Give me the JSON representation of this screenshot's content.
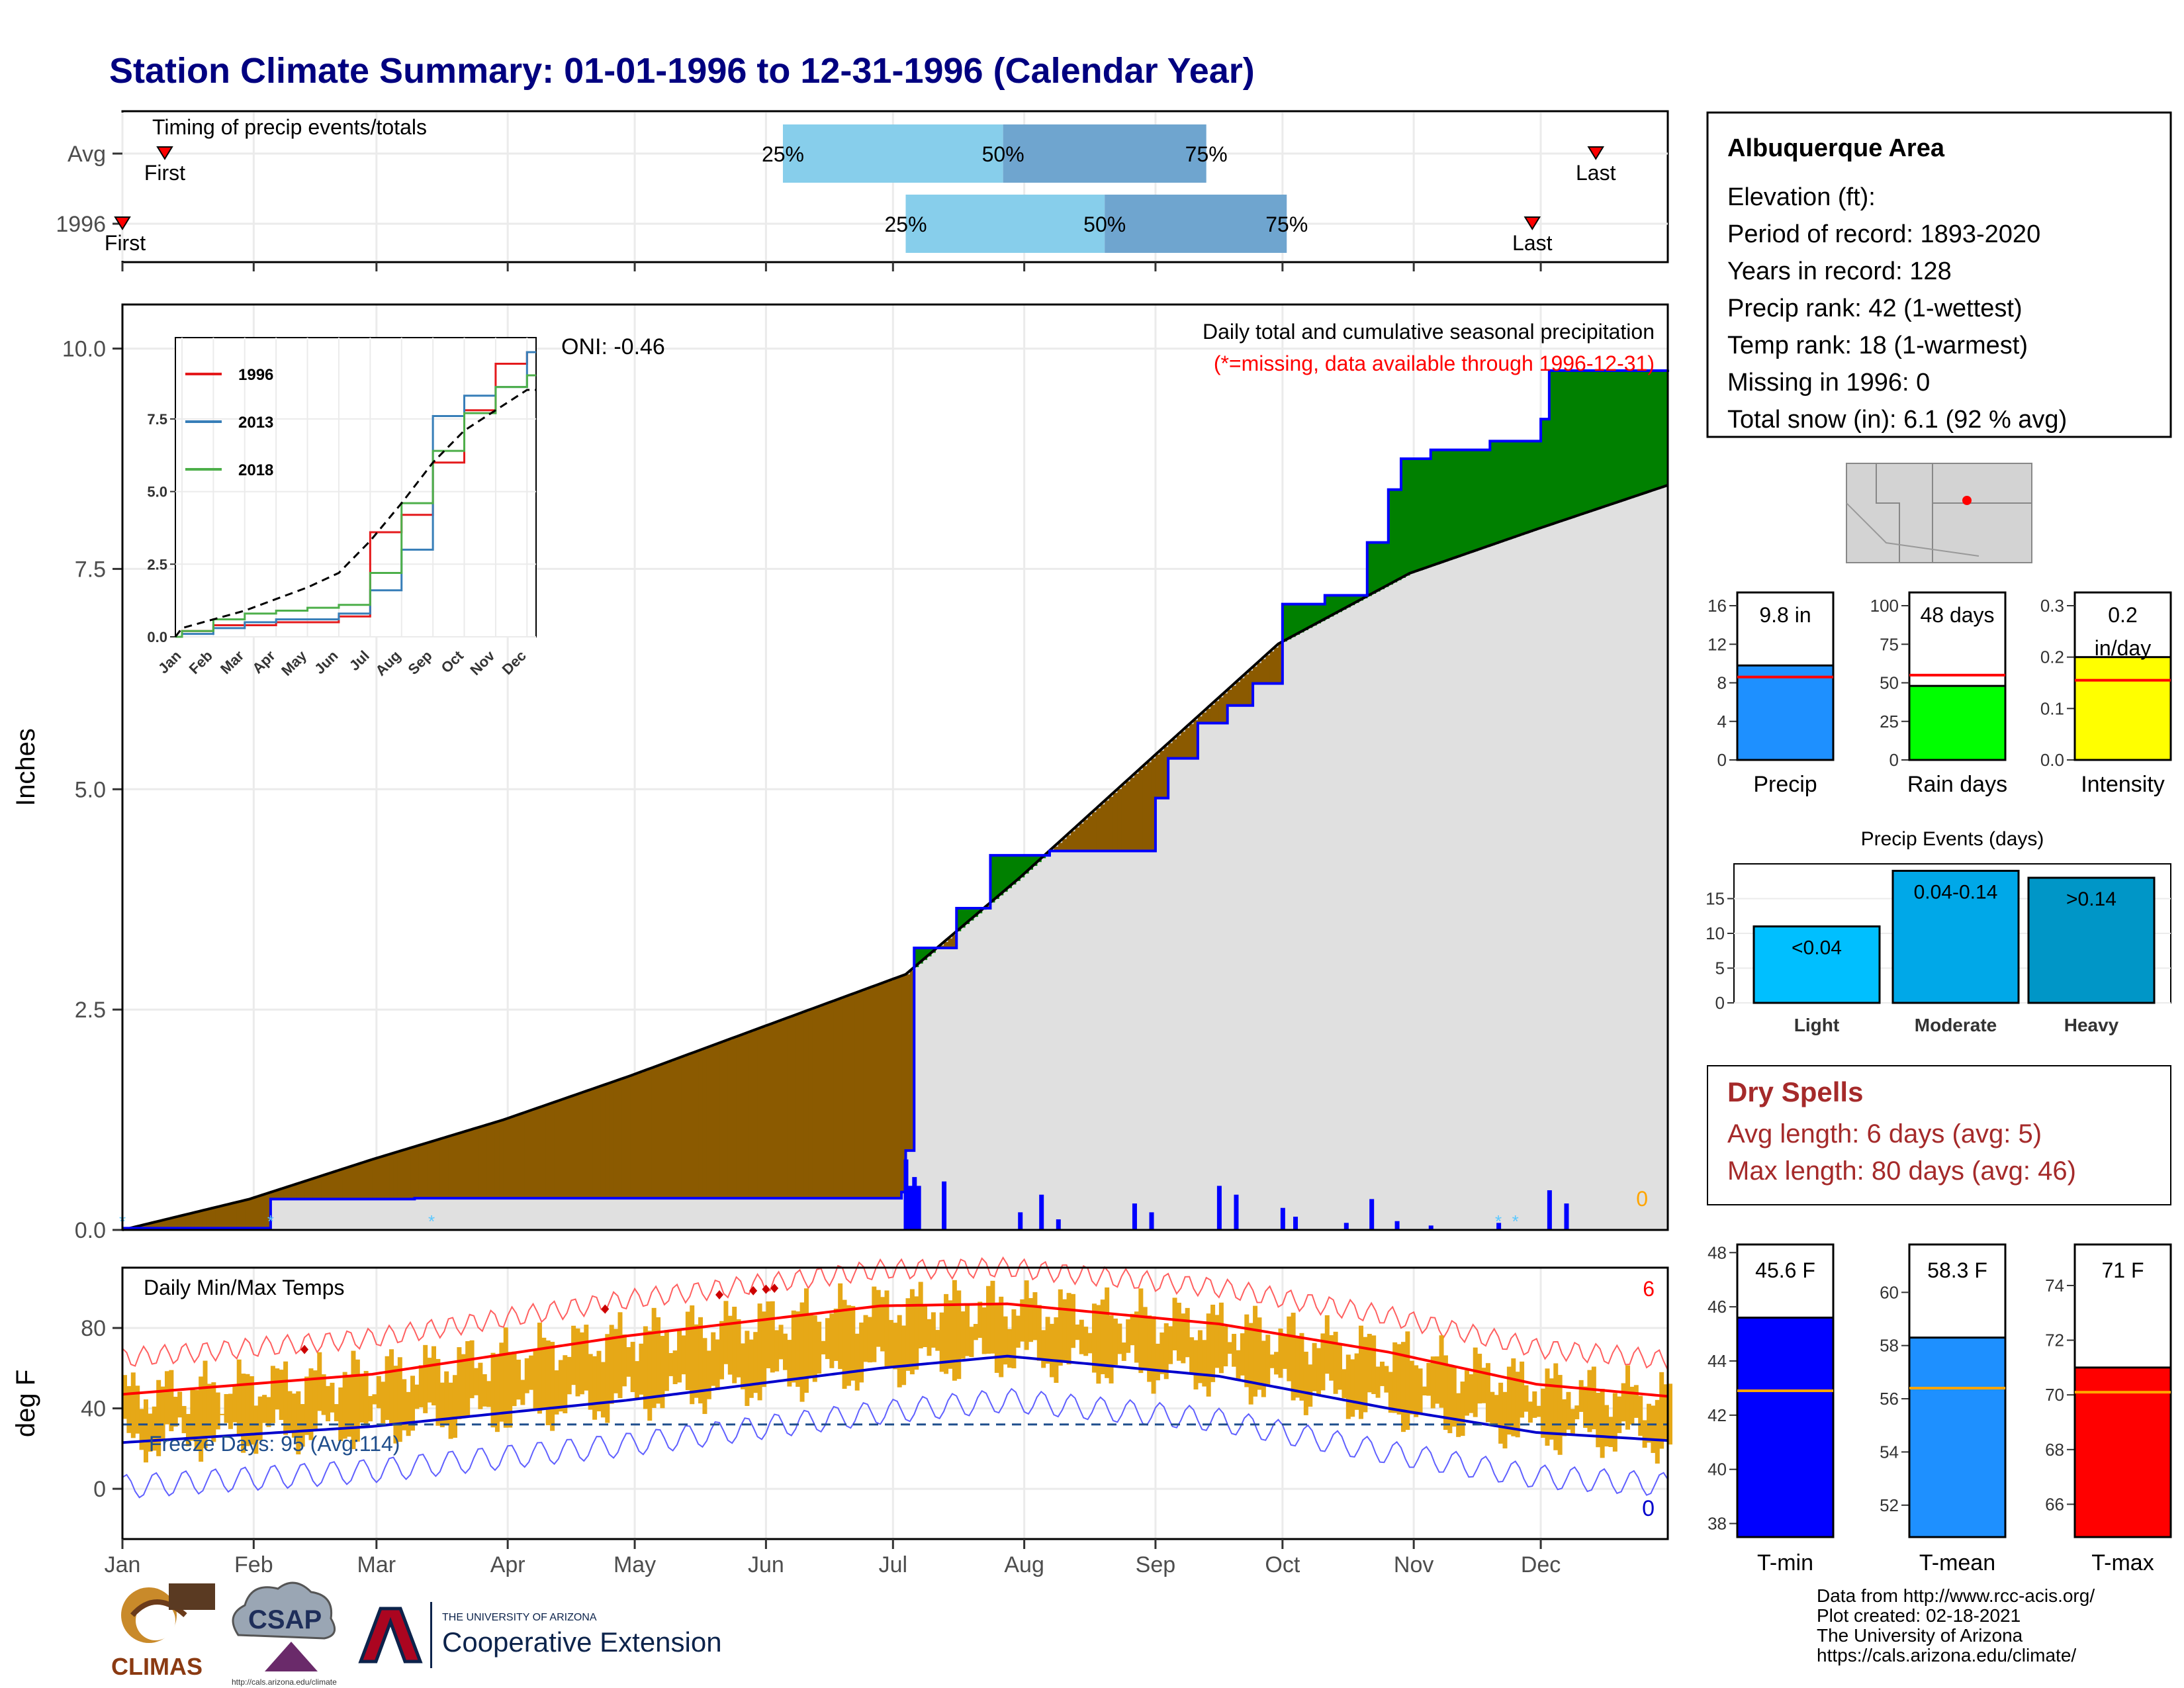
{
  "title": "Station Climate Summary: 01-01-1996 to 12-31-1996 (Calendar Year)",
  "colors": {
    "title": "#000080",
    "precip_blue": "#0000ff",
    "surplus_green": "#008000",
    "deficit_brown": "#8b5a00",
    "normal_gray": "#e0e0e0",
    "temp_gold": "#e6a817",
    "red": "#ff0000",
    "dry_spell": "#a52a2a"
  },
  "months": [
    "Jan",
    "Feb",
    "Mar",
    "Apr",
    "May",
    "Jun",
    "Jul",
    "Aug",
    "Sep",
    "Oct",
    "Nov",
    "Dec"
  ],
  "timing": {
    "label": "Timing of precip events/totals",
    "rows": [
      {
        "name": "Avg",
        "first_label": "First",
        "last_label": "Last",
        "first_day": 11,
        "p25_day": 157,
        "p50_day": 209,
        "p75_day": 257,
        "last_day": 349
      },
      {
        "name": "1996",
        "first_label": "First",
        "last_label": "Last",
        "first_day": 1,
        "p25_day": 186,
        "p50_day": 233,
        "p75_day": 276,
        "last_day": 334
      }
    ],
    "pct_labels": [
      "25%",
      "50%",
      "75%"
    ]
  },
  "station": {
    "name": "Albuquerque Area",
    "lines": [
      "Elevation (ft):",
      "Period of record: 1893-2020",
      "Years in record: 128",
      "Precip rank: 42 (1-wettest)",
      "Temp rank: 18 (1-warmest)",
      "Missing in 1996: 0",
      "Total snow (in): 6.1 (92 % avg)"
    ]
  },
  "precip_panel": {
    "title": "Daily total and cumulative seasonal precipitation",
    "subtitle": "(*=missing, data available through 1996-12-31)",
    "oni": "ONI: -0.46",
    "ylabel": "Inches",
    "yticks": [
      "0.0",
      "2.5",
      "5.0",
      "7.5",
      "10.0"
    ],
    "missing_count": "0"
  },
  "inset": {
    "legend": [
      "1996",
      "2013",
      "2018"
    ],
    "legend_colors": [
      "#e41a1c",
      "#377eb8",
      "#4daf4a"
    ],
    "yticks": [
      "0.0",
      "2.5",
      "5.0",
      "7.5"
    ]
  },
  "temp_panel": {
    "title": "Daily Min/Max Temps",
    "ylabel": "deg F",
    "yticks": [
      "0",
      "40",
      "80"
    ],
    "freeze": "Freeze Days: 95 (Avg:114)",
    "record_high_count": "6",
    "record_low_count": "0"
  },
  "summary_bars": [
    {
      "label": "Precip",
      "value_label": "9.8 in",
      "ticks": [
        "0",
        "4",
        "8",
        "12",
        "16"
      ],
      "color": "#1e90ff"
    },
    {
      "label": "Rain days",
      "value_label": "48 days",
      "ticks": [
        "0",
        "25",
        "50",
        "75",
        "100"
      ],
      "color": "#00ff00"
    },
    {
      "label": "Intensity",
      "value_label": "0.2\nin/day",
      "ticks": [
        "0.0",
        "0.1",
        "0.2",
        "0.3"
      ],
      "color": "#ffff00"
    }
  ],
  "events": {
    "title": "Precip Events (days)",
    "yticks": [
      "0",
      "5",
      "10",
      "15"
    ],
    "bars": [
      {
        "label": "Light",
        "value_label": "<0.04",
        "color": "#00bfff"
      },
      {
        "label": "Moderate",
        "value_label": "0.04-0.14",
        "color": "#00a8e8"
      },
      {
        "label": "Heavy",
        "value_label": ">0.14",
        "color": "#0096c7"
      }
    ]
  },
  "dry_spells": {
    "title": "Dry Spells",
    "lines": [
      "Avg length: 6 days (avg: 5)",
      "Max length: 80 days (avg: 46)"
    ]
  },
  "temp_bars": [
    {
      "label": "T-min",
      "value_label": "45.6 F",
      "ticks": [
        "38",
        "40",
        "42",
        "44",
        "46",
        "48"
      ],
      "color": "#0000ff"
    },
    {
      "label": "T-mean",
      "value_label": "58.3 F",
      "ticks": [
        "52",
        "54",
        "56",
        "58",
        "60"
      ],
      "color": "#1e90ff"
    },
    {
      "label": "T-max",
      "value_label": "71 F",
      "ticks": [
        "66",
        "68",
        "70",
        "72",
        "74"
      ],
      "color": "#ff0000"
    }
  ],
  "credits": [
    "Data from http://www.rcc-acis.org/",
    "Plot created: 02-18-2021",
    "The University of Arizona",
    "https://cals.arizona.edu/climate/"
  ],
  "logos": {
    "climas": "CLIMAS",
    "csap": "CSAP",
    "csap_url": "http://cals.arizona.edu/climate",
    "ua_top": "THE UNIVERSITY OF ARIZONA",
    "ua_bottom": "Cooperative Extension"
  },
  "chart_data": [
    {
      "type": "area",
      "title": "Daily total and cumulative seasonal precipitation",
      "ylabel": "Inches",
      "ylim": [
        0,
        10.5
      ],
      "x_unit": "day of year 1996",
      "cumulative_1996_steps": [
        [
          1,
          0.02
        ],
        [
          36,
          0.35
        ],
        [
          70,
          0.36
        ],
        [
          185,
          0.43
        ],
        [
          186,
          0.9
        ],
        [
          188,
          3.2
        ],
        [
          198,
          3.65
        ],
        [
          206,
          4.25
        ],
        [
          220,
          4.3
        ],
        [
          245,
          4.9
        ],
        [
          248,
          5.35
        ],
        [
          255,
          5.75
        ],
        [
          262,
          5.95
        ],
        [
          268,
          6.2
        ],
        [
          275,
          7.1
        ],
        [
          285,
          7.2
        ],
        [
          295,
          7.8
        ],
        [
          300,
          8.4
        ],
        [
          303,
          8.75
        ],
        [
          310,
          8.85
        ],
        [
          324,
          8.95
        ],
        [
          336,
          9.2
        ],
        [
          338,
          9.75
        ],
        [
          366,
          9.76
        ]
      ],
      "normal_cumulative": [
        [
          1,
          0.0
        ],
        [
          31,
          0.35
        ],
        [
          60,
          0.8
        ],
        [
          91,
          1.25
        ],
        [
          121,
          1.75
        ],
        [
          152,
          2.3
        ],
        [
          186,
          2.9
        ],
        [
          213,
          4.0
        ],
        [
          244,
          5.35
        ],
        [
          274,
          6.65
        ],
        [
          305,
          7.45
        ],
        [
          335,
          7.95
        ],
        [
          366,
          8.45
        ]
      ],
      "daily_precip": [
        [
          186,
          0.8
        ],
        [
          187,
          0.5
        ],
        [
          188,
          0.6
        ],
        [
          189,
          0.5
        ],
        [
          195,
          0.55
        ],
        [
          213,
          0.2
        ],
        [
          218,
          0.4
        ],
        [
          222,
          0.12
        ],
        [
          240,
          0.3
        ],
        [
          244,
          0.2
        ],
        [
          260,
          0.5
        ],
        [
          264,
          0.4
        ],
        [
          275,
          0.25
        ],
        [
          278,
          0.15
        ],
        [
          290,
          0.08
        ],
        [
          296,
          0.35
        ],
        [
          302,
          0.1
        ],
        [
          310,
          0.05
        ],
        [
          326,
          0.08
        ],
        [
          338,
          0.45
        ],
        [
          342,
          0.3
        ]
      ]
    },
    {
      "type": "line",
      "title": "Daily Min/Max Temps",
      "ylabel": "deg F",
      "ylim": [
        -25,
        110
      ],
      "normal_max": [
        [
          1,
          47
        ],
        [
          60,
          57
        ],
        [
          120,
          76
        ],
        [
          180,
          91
        ],
        [
          210,
          92
        ],
        [
          260,
          82
        ],
        [
          300,
          68
        ],
        [
          335,
          52
        ],
        [
          366,
          46
        ]
      ],
      "normal_min": [
        [
          1,
          23
        ],
        [
          60,
          31
        ],
        [
          120,
          44
        ],
        [
          180,
          60
        ],
        [
          210,
          66
        ],
        [
          260,
          56
        ],
        [
          300,
          40
        ],
        [
          335,
          28
        ],
        [
          366,
          24
        ]
      ],
      "freeze_line": 32
    },
    {
      "type": "line",
      "title": "",
      "months": [
        "Jan",
        "Feb",
        "Mar",
        "Apr",
        "May",
        "Jun",
        "Jul",
        "Aug",
        "Sep",
        "Oct",
        "Nov",
        "Dec"
      ],
      "series": [
        {
          "name": "1996",
          "values": [
            0.2,
            0.4,
            0.4,
            0.5,
            0.5,
            0.7,
            3.6,
            4.2,
            6.0,
            7.8,
            9.4,
            9.8
          ]
        },
        {
          "name": "2013",
          "values": [
            0.1,
            0.3,
            0.5,
            0.6,
            0.6,
            0.8,
            1.6,
            3.0,
            7.6,
            8.3,
            8.6,
            9.8
          ]
        },
        {
          "name": "2018",
          "values": [
            0.2,
            0.6,
            0.8,
            0.9,
            1.0,
            1.1,
            2.2,
            4.6,
            6.4,
            7.7,
            8.6,
            9.0
          ]
        },
        {
          "name": "",
          "values": [
            0.3,
            0.6,
            0.9,
            1.3,
            1.7,
            2.2,
            3.3,
            4.6,
            6.0,
            7.1,
            7.8,
            8.5
          ]
        }
      ]
    },
    {
      "type": "bar",
      "title": "Precip Events (days)",
      "categories": [
        "Light",
        "Moderate",
        "Heavy"
      ],
      "values": [
        11,
        19,
        18
      ],
      "ylim": [
        0,
        20
      ]
    },
    {
      "type": "bar",
      "categories": [
        "Precip",
        "Rain days",
        "Intensity"
      ],
      "values": [
        9.8,
        48,
        0.2
      ],
      "averages": [
        8.6,
        55,
        0.155
      ]
    },
    {
      "type": "bar",
      "categories": [
        "T-min",
        "T-mean",
        "T-max"
      ],
      "values": [
        45.6,
        58.3,
        71
      ],
      "averages": [
        42.9,
        56.4,
        70.1
      ]
    }
  ]
}
